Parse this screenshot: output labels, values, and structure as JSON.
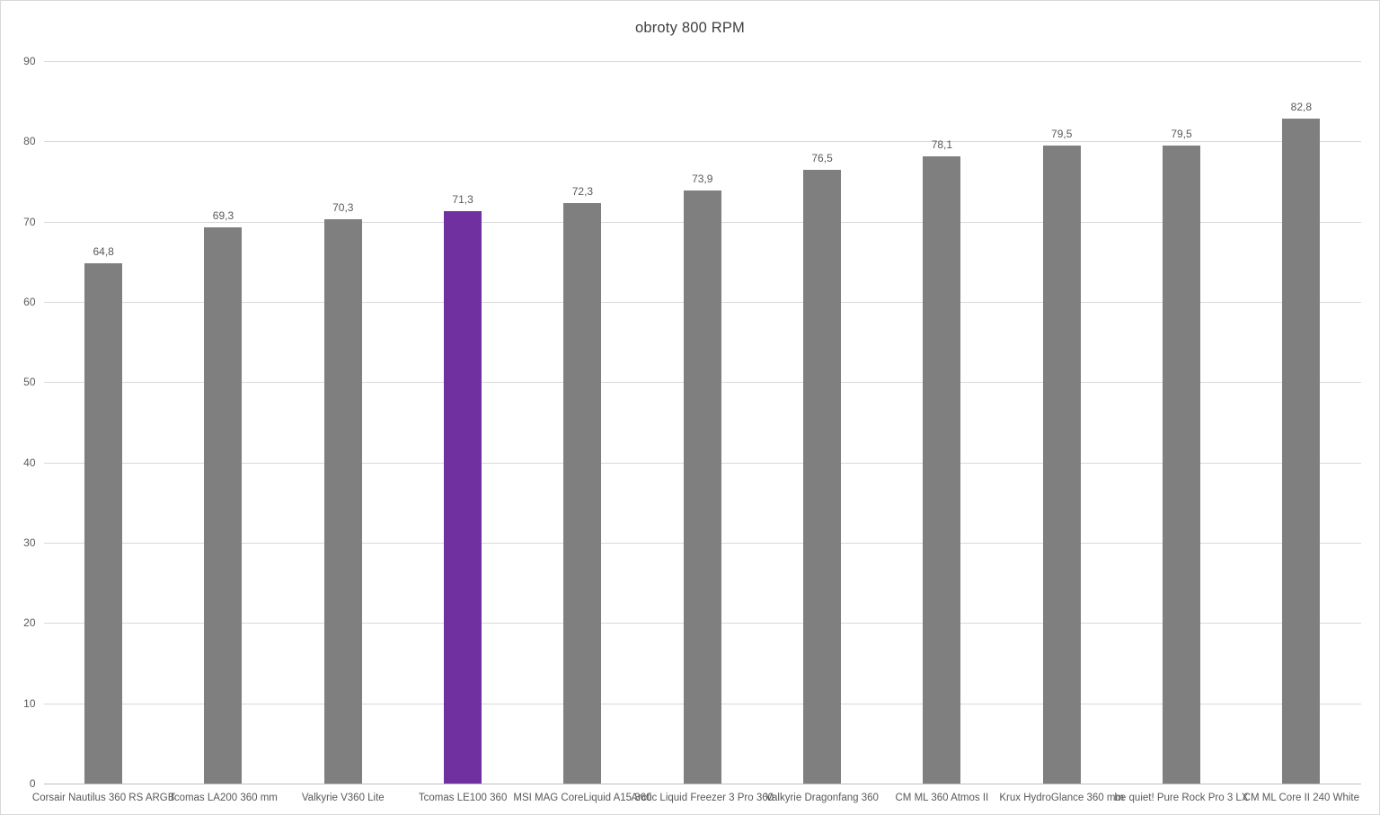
{
  "title": "obroty 800 RPM",
  "colors": {
    "bar": "#7f7f7f",
    "highlight": "#7030a0",
    "gridline": "#d9d9d9",
    "axis_line": "#bfbfbf",
    "text": "#595959",
    "title_text": "#404040",
    "frame_border": "#d9d9d9"
  },
  "chart_data": {
    "type": "bar",
    "title": "obroty 800 RPM",
    "xlabel": "",
    "ylabel": "",
    "grid": true,
    "legend": "none",
    "ylim": [
      0,
      90
    ],
    "yticks": [
      0,
      10,
      20,
      30,
      40,
      50,
      60,
      70,
      80,
      90
    ],
    "categories": [
      "Corsair Nautilus 360 RS ARGB",
      "Tcomas LA200 360 mm",
      "Valkyrie V360 Lite",
      "Tcomas LE100 360",
      "MSI MAG CoreLiquid A15 360",
      "Arctic Liquid Freezer 3 Pro 360",
      "Valkyrie Dragonfang 360",
      "CM ML 360 Atmos II",
      "Krux HydroGlance 360 mm",
      "be quiet! Pure Rock Pro 3 LX",
      "CM ML Core II 240 White"
    ],
    "values": [
      64.8,
      69.3,
      70.3,
      71.3,
      72.3,
      73.9,
      76.5,
      78.1,
      79.5,
      79.5,
      82.8
    ],
    "value_labels": [
      "64,8",
      "69,3",
      "70,3",
      "71,3",
      "72,3",
      "73,9",
      "76,5",
      "78,1",
      "79,5",
      "79,5",
      "82,8"
    ],
    "highlight_index": 3
  }
}
